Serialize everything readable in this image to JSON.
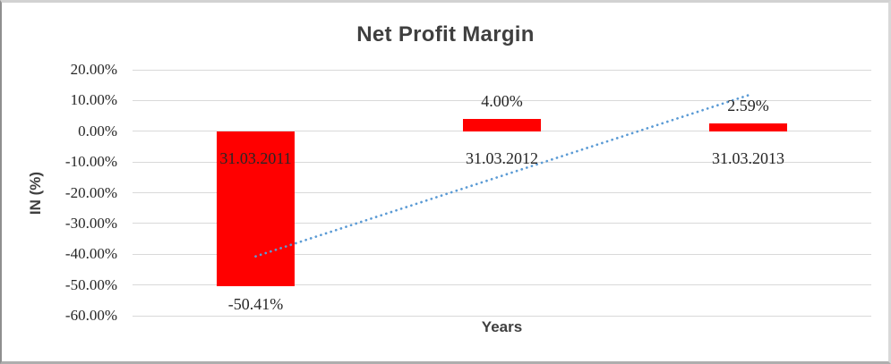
{
  "chart_data": {
    "type": "bar",
    "title": "Net Profit Margin",
    "xlabel": "Years",
    "ylabel": "IN (%)",
    "categories": [
      "31.03.2011",
      "31.03.2012",
      "31.03.2013"
    ],
    "values": [
      -50.41,
      4.0,
      2.59
    ],
    "data_labels": [
      "-50.41%",
      "4.00%",
      "2.59%"
    ],
    "ylim": [
      -60,
      20
    ],
    "ytick_step": 10,
    "ytick_labels": [
      "20.00%",
      "10.00%",
      "0.00%",
      "-10.00%",
      "-20.00%",
      "-30.00%",
      "-40.00%",
      "-50.00%",
      "-60.00%"
    ],
    "grid": true,
    "legend": "none",
    "bar_color": "#FF0000",
    "grid_color": "#D9D9D9",
    "trendline": {
      "type": "linear",
      "style": "dotted",
      "color": "#5B9BD5",
      "start": {
        "category_index": 0,
        "value": -40.7
      },
      "end": {
        "category_index": 2,
        "value": 11.7
      }
    }
  }
}
